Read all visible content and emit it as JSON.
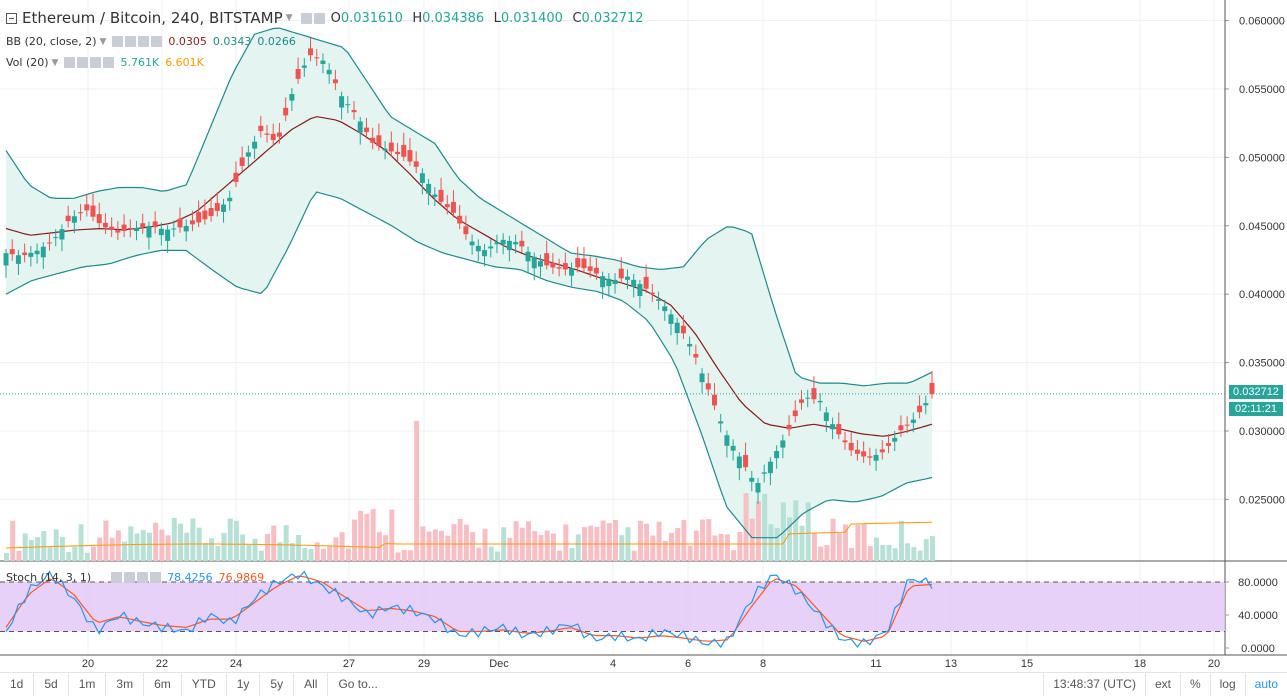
{
  "legend": {
    "symbol": "Ethereum / Bitcoin, 240, BITSTAMP",
    "ohlc": [
      {
        "k": "O",
        "v": "0.031610"
      },
      {
        "k": "H",
        "v": "0.034386"
      },
      {
        "k": "L",
        "v": "0.031400"
      },
      {
        "k": "C",
        "v": "0.032712"
      }
    ],
    "bb": {
      "label": "BB (20, close, 2)",
      "v1": "0.0305",
      "v2": "0.0343",
      "v3": "0.0266"
    },
    "vol": {
      "label": "Vol (20)",
      "v1": "5.761K",
      "v2": "6.601K"
    },
    "stoch": {
      "label": "Stoch (14, 3, 1)",
      "v1": "78.4256",
      "v2": "76.9869"
    }
  },
  "price_tag": "0.032712",
  "countdown": "02:11:21",
  "colors": {
    "up": "#26a69a",
    "down": "#ef5350",
    "bb": "#1f8a8a",
    "basis": "#8b1a1a",
    "stoch_k": "#2196f3",
    "stoch_d": "#ff5722",
    "stoch_bg": "#e1c6f7",
    "vol_ma": "#ff9800"
  },
  "toolbar": {
    "ranges": [
      "1d",
      "5d",
      "1m",
      "3m",
      "6m",
      "YTD",
      "1y",
      "5y",
      "All"
    ],
    "goto": "Go to...",
    "time": "13:48:37 (UTC)",
    "right": [
      "ext",
      "%",
      "log",
      "auto"
    ]
  },
  "chart_data": {
    "type": "candlestick",
    "title": "Ethereum / Bitcoin, 240, BITSTAMP",
    "price_axis_ticks": [
      "0.060000",
      "0.055000",
      "0.050000",
      "0.045000",
      "0.040000",
      "0.035000",
      "0.030000",
      "0.025000"
    ],
    "stoch_axis_ticks": [
      "80.0000",
      "40.0000",
      "0.0000"
    ],
    "x_ticks": [
      "20",
      "22",
      "24",
      "27",
      "29",
      "Dec",
      "4",
      "6",
      "8",
      "11",
      "13",
      "15",
      "18",
      "20"
    ],
    "ylim": [
      0.0205,
      0.062
    ],
    "close_path": [
      0.043,
      0.0428,
      0.0432,
      0.044,
      0.0455,
      0.0462,
      0.045,
      0.0445,
      0.0448,
      0.045,
      0.0447,
      0.0449,
      0.0452,
      0.0458,
      0.047,
      0.05,
      0.052,
      0.051,
      0.055,
      0.0575,
      0.057,
      0.0545,
      0.053,
      0.051,
      0.0505,
      0.05,
      0.049,
      0.047,
      0.046,
      0.044,
      0.0432,
      0.044,
      0.0438,
      0.0428,
      0.042,
      0.0418,
      0.042,
      0.0415,
      0.041,
      0.0413,
      0.0405,
      0.0395,
      0.038,
      0.036,
      0.033,
      0.03,
      0.028,
      0.026,
      0.028,
      0.03,
      0.0325,
      0.0322,
      0.03,
      0.0285,
      0.028,
      0.0285,
      0.03,
      0.031,
      0.0327
    ],
    "bb_upper": [
      0.0505,
      0.048,
      0.047,
      0.047,
      0.0475,
      0.0478,
      0.0478,
      0.0475,
      0.048,
      0.052,
      0.056,
      0.059,
      0.0595,
      0.059,
      0.0585,
      0.058,
      0.0555,
      0.053,
      0.052,
      0.051,
      0.0485,
      0.047,
      0.046,
      0.045,
      0.044,
      0.043,
      0.0428,
      0.0425,
      0.042,
      0.0418,
      0.042,
      0.044,
      0.045,
      0.0445,
      0.039,
      0.034,
      0.0335,
      0.0335,
      0.0333,
      0.0335,
      0.0335,
      0.0343
    ],
    "bb_basis": [
      0.0448,
      0.0443,
      0.0445,
      0.0447,
      0.0448,
      0.0447,
      0.0449,
      0.0452,
      0.046,
      0.0475,
      0.049,
      0.0505,
      0.052,
      0.053,
      0.0527,
      0.0517,
      0.0505,
      0.0488,
      0.047,
      0.0455,
      0.0445,
      0.0435,
      0.0428,
      0.0423,
      0.0418,
      0.0412,
      0.0408,
      0.0402,
      0.0392,
      0.0372,
      0.0345,
      0.032,
      0.0305,
      0.0302,
      0.0305,
      0.0302,
      0.0298,
      0.0296,
      0.03,
      0.0305
    ],
    "bb_lower": [
      0.04,
      0.041,
      0.0415,
      0.042,
      0.0422,
      0.0428,
      0.0432,
      0.0432,
      0.0418,
      0.0405,
      0.04,
      0.0435,
      0.0475,
      0.047,
      0.046,
      0.045,
      0.0438,
      0.043,
      0.0425,
      0.042,
      0.0418,
      0.041,
      0.0405,
      0.0402,
      0.0395,
      0.038,
      0.035,
      0.03,
      0.0245,
      0.0222,
      0.0222,
      0.024,
      0.025,
      0.0248,
      0.0252,
      0.0262,
      0.0266
    ],
    "stoch_k_path": [
      20,
      70,
      90,
      60,
      20,
      40,
      30,
      25,
      20,
      40,
      30,
      60,
      80,
      90,
      75,
      60,
      40,
      50,
      45,
      35,
      15,
      20,
      25,
      15,
      20,
      30,
      10,
      15,
      10,
      20,
      15,
      5,
      8,
      60,
      90,
      70,
      40,
      10,
      5,
      20,
      85,
      78
    ],
    "stoch_d_path": [
      25,
      65,
      85,
      65,
      30,
      38,
      32,
      27,
      25,
      35,
      35,
      55,
      75,
      88,
      80,
      62,
      45,
      48,
      45,
      38,
      20,
      20,
      22,
      18,
      20,
      25,
      15,
      15,
      12,
      15,
      12,
      8,
      10,
      50,
      85,
      75,
      45,
      15,
      8,
      15,
      75,
      77
    ],
    "stoch_bands": [
      80,
      20
    ]
  }
}
